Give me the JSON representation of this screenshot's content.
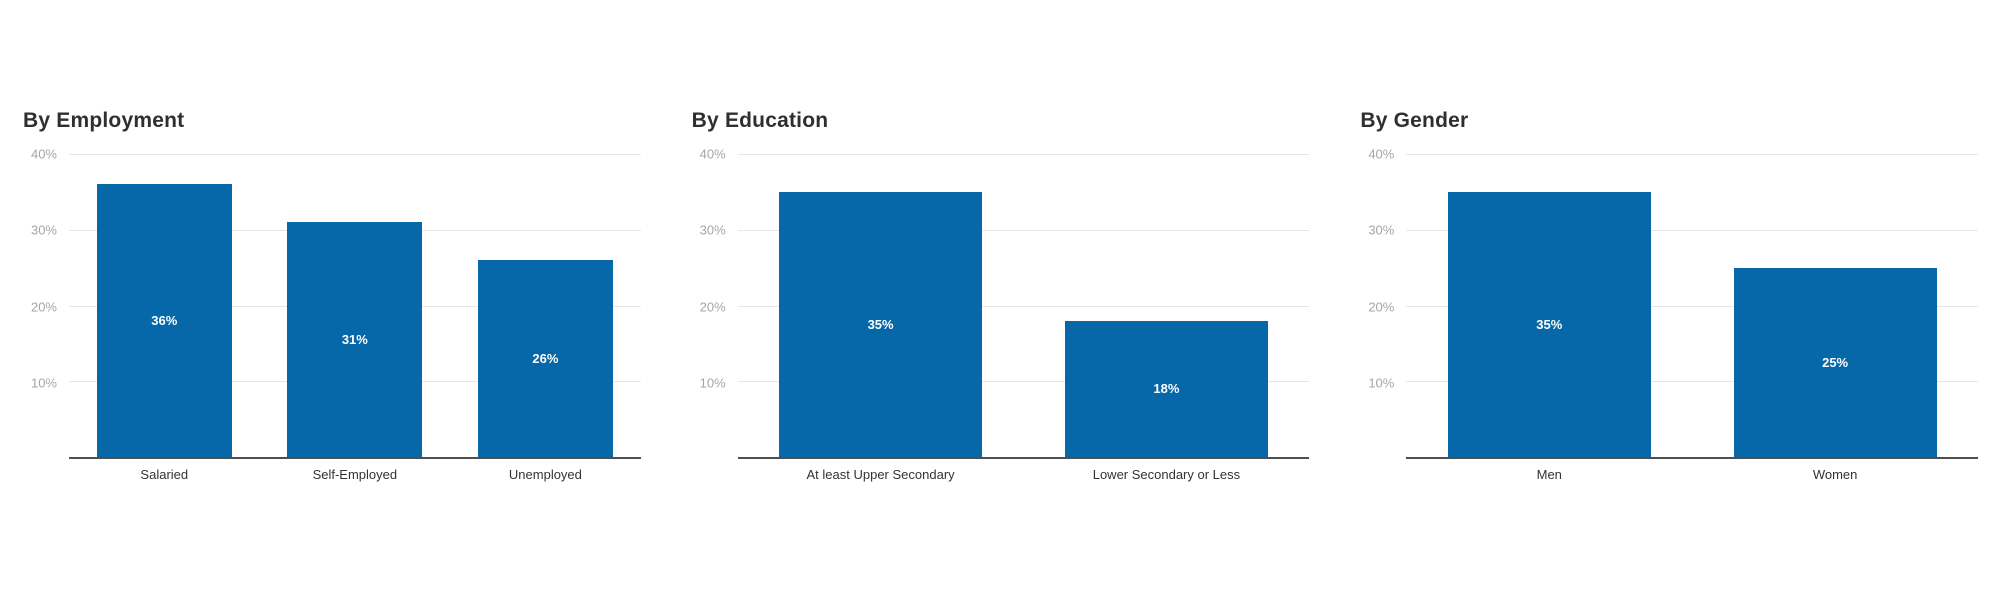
{
  "chart_data": [
    {
      "type": "bar",
      "title": "By Employment",
      "categories": [
        "Salaried",
        "Self-Employed",
        "Unemployed"
      ],
      "values": [
        36,
        31,
        26
      ],
      "value_labels": [
        "36%",
        "31%",
        "26%"
      ],
      "ylim": [
        0,
        40
      ],
      "ytick_labels": [
        "40%",
        "30%",
        "20%",
        "10%"
      ],
      "grid": "on",
      "legend": "none"
    },
    {
      "type": "bar",
      "title": "By Education",
      "categories": [
        "At least Upper Secondary",
        "Lower Secondary or Less"
      ],
      "values": [
        35,
        18
      ],
      "value_labels": [
        "35%",
        "18%"
      ],
      "ylim": [
        0,
        40
      ],
      "ytick_labels": [
        "40%",
        "30%",
        "20%",
        "10%"
      ],
      "grid": "on",
      "legend": "none"
    },
    {
      "type": "bar",
      "title": "By Gender",
      "categories": [
        "Men",
        "Women"
      ],
      "values": [
        35,
        25
      ],
      "value_labels": [
        "35%",
        "25%"
      ],
      "ylim": [
        0,
        40
      ],
      "ytick_labels": [
        "40%",
        "30%",
        "20%",
        "10%"
      ],
      "grid": "on",
      "legend": "none"
    }
  ],
  "colors": {
    "bar": "#0768a9",
    "title": "#2f2f2f",
    "tick_label": "#a6a6a6",
    "gridline": "#e6e6e6",
    "axis_line": "#4f4f4f",
    "value_label": "#ffffff",
    "category_label": "#333333",
    "background": "#ffffff"
  }
}
